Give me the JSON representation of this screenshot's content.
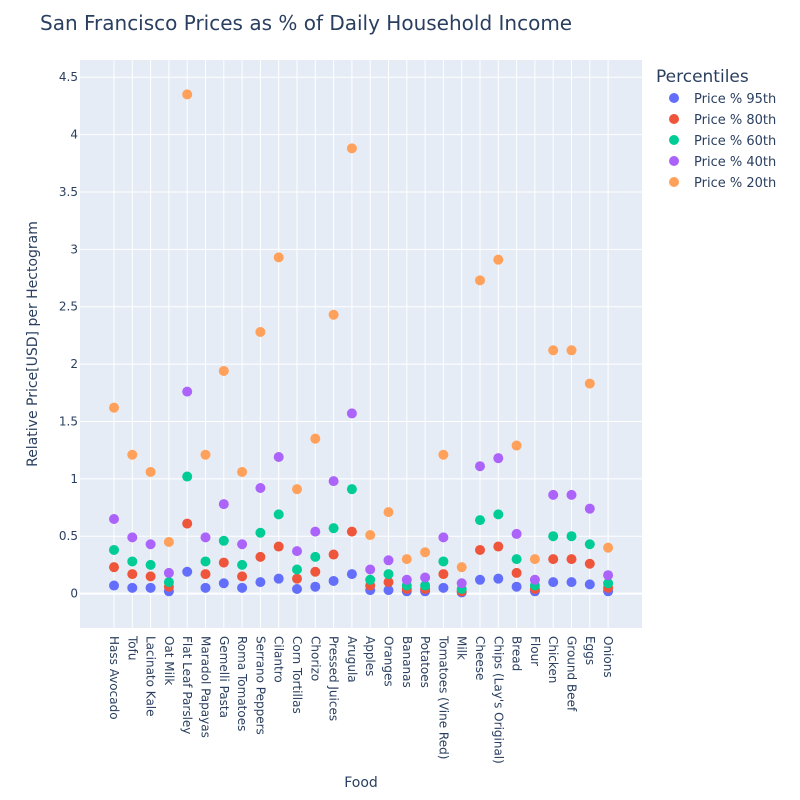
{
  "chart_data": {
    "type": "scatter",
    "title": "San Francisco Prices as % of Daily Household Income",
    "xlabel": "Food",
    "ylabel": "Relative Price[USD] per Hectogram",
    "ylim": [
      -0.3,
      4.65
    ],
    "yticks": [
      0,
      0.5,
      1,
      1.5,
      2,
      2.5,
      3,
      3.5,
      4,
      4.5
    ],
    "ytick_labels": [
      "0",
      "0.5",
      "1",
      "1.5",
      "2",
      "2.5",
      "3",
      "3.5",
      "4",
      "4.5"
    ],
    "grid": true,
    "legend_title": "Percentiles",
    "legend_position": "top-right outside",
    "categories": [
      "Hass Avocado",
      "Tofu",
      "Lacinato Kale",
      "Oat Milk",
      "Flat Leaf Parsley",
      "Maradol Papayas",
      "Gemelli Pasta",
      "Roma Tomatoes",
      "Serrano Peppers",
      "Cilantro",
      "Corn Tortillas",
      "Chorizo",
      "Pressed Juices",
      "Arugula",
      "Apples",
      "Oranges",
      "Bananas",
      "Potatoes",
      "Tomatoes (Vine Red)",
      "Milk",
      "Cheese",
      "Chips (Lay's Original)",
      "Bread",
      "Flour",
      "Chicken",
      "Ground Beef",
      "Eggs",
      "Onions"
    ],
    "series": [
      {
        "name": "Price % 95th",
        "color": "#636efa",
        "values": [
          0.07,
          0.05,
          0.05,
          0.02,
          0.19,
          0.05,
          0.09,
          0.05,
          0.1,
          0.13,
          0.04,
          0.06,
          0.11,
          0.17,
          0.03,
          0.03,
          0.02,
          0.02,
          0.05,
          0.01,
          0.12,
          0.13,
          0.06,
          0.02,
          0.1,
          0.1,
          0.08,
          0.02
        ]
      },
      {
        "name": "Price % 80th",
        "color": "#ef553b",
        "values": [
          0.23,
          0.17,
          0.15,
          0.06,
          0.61,
          0.17,
          0.27,
          0.15,
          0.32,
          0.41,
          0.13,
          0.19,
          0.34,
          0.54,
          0.07,
          0.1,
          0.04,
          0.04,
          0.17,
          0.02,
          0.38,
          0.41,
          0.18,
          0.04,
          0.3,
          0.3,
          0.26,
          0.05
        ]
      },
      {
        "name": "Price % 60th",
        "color": "#00cc96",
        "values": [
          0.38,
          0.28,
          0.25,
          0.1,
          1.02,
          0.28,
          0.46,
          0.25,
          0.53,
          0.69,
          0.21,
          0.32,
          0.57,
          0.91,
          0.12,
          0.17,
          0.07,
          0.07,
          0.28,
          0.04,
          0.64,
          0.69,
          0.3,
          0.07,
          0.5,
          0.5,
          0.43,
          0.09
        ]
      },
      {
        "name": "Price % 40th",
        "color": "#ab63fa",
        "values": [
          0.65,
          0.49,
          0.43,
          0.18,
          1.76,
          0.49,
          0.78,
          0.43,
          0.92,
          1.19,
          0.37,
          0.54,
          0.98,
          1.57,
          0.21,
          0.29,
          0.12,
          0.14,
          0.49,
          0.09,
          1.11,
          1.18,
          0.52,
          0.12,
          0.86,
          0.86,
          0.74,
          0.16
        ]
      },
      {
        "name": "Price % 20th",
        "color": "#ffa15a",
        "values": [
          1.62,
          1.21,
          1.06,
          0.45,
          4.35,
          1.21,
          1.94,
          1.06,
          2.28,
          2.93,
          0.91,
          1.35,
          2.43,
          3.88,
          0.51,
          0.71,
          0.3,
          0.36,
          1.21,
          0.23,
          2.73,
          2.91,
          1.29,
          0.3,
          2.12,
          2.12,
          1.83,
          0.4
        ]
      }
    ]
  }
}
